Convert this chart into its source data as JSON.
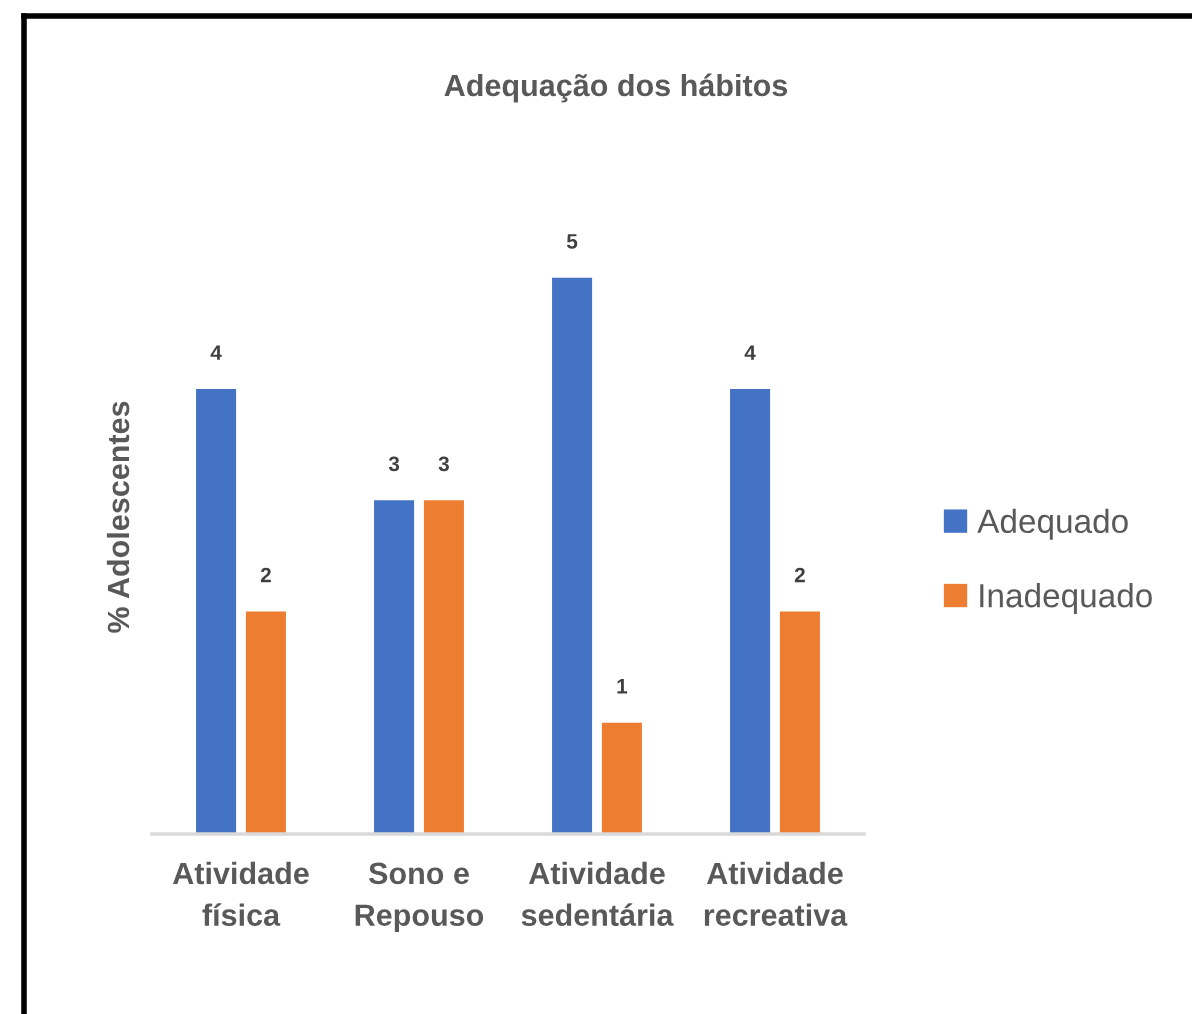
{
  "chart_data": {
    "type": "bar",
    "title": "Adequação dos hábitos",
    "ylabel": "% Adolescentes",
    "categories": [
      "Atividade\nfísica",
      "Sono e\nRepouso",
      "Atividade\nsedentária",
      "Atividade\nrecreativa"
    ],
    "series": [
      {
        "name": "Adequado",
        "color": "#4472c4",
        "values": [
          4,
          3,
          5,
          4
        ]
      },
      {
        "name": "Inadequado",
        "color": "#ed7d31",
        "values": [
          2,
          3,
          1,
          2
        ]
      }
    ],
    "data_labels": true,
    "legend": "right",
    "grid": false
  }
}
